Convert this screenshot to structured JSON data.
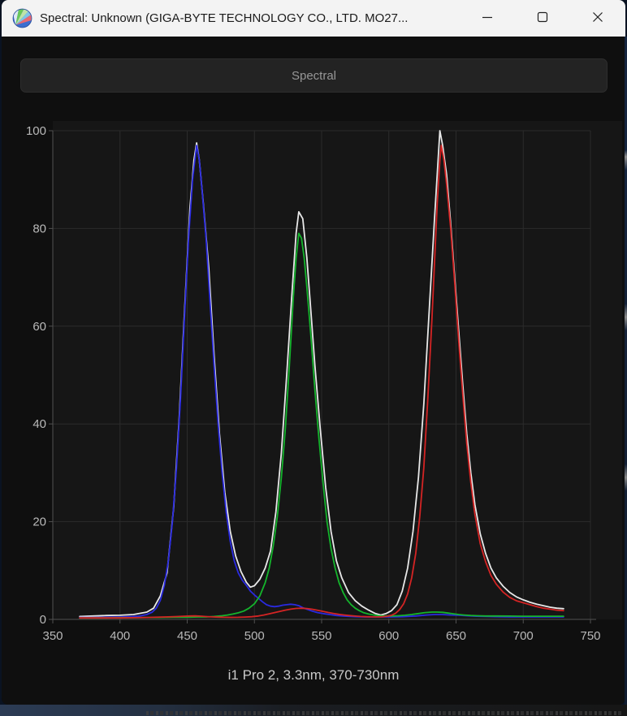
{
  "window": {
    "title": "Spectral: Unknown (GIGA-BYTE TECHNOLOGY CO., LTD. MO27...",
    "app_icon": "displaycal-logo",
    "controls": [
      {
        "name": "minimize"
      },
      {
        "name": "maximize"
      },
      {
        "name": "close"
      }
    ]
  },
  "toolbar": {
    "spectral_label": "Spectral"
  },
  "caption": {
    "text": "i1 Pro 2, 3.3nm, 370-730nm"
  },
  "colors": {
    "titlebar_bg": "#f3f3f3",
    "window_bg": "#0f0f0f",
    "plot_bg": "#161616",
    "button_bg": "#232323",
    "grid": "#2b2b2b",
    "axis": "#515151",
    "tick_text": "#b9b9b9"
  },
  "chart_data": {
    "type": "line",
    "title": "",
    "xlabel": "",
    "ylabel": "",
    "xlim": [
      350,
      750
    ],
    "ylim": [
      0,
      100
    ],
    "x_ticks": [
      350,
      400,
      450,
      500,
      550,
      600,
      650,
      700,
      750
    ],
    "y_ticks": [
      0,
      20,
      40,
      60,
      80,
      100
    ],
    "grid": true,
    "legend": "none",
    "x_unit": "nm",
    "series": [
      {
        "name": "white",
        "color": "#e8e8e8",
        "points": [
          [
            370,
            0.6
          ],
          [
            380,
            0.7
          ],
          [
            390,
            0.8
          ],
          [
            400,
            0.85
          ],
          [
            410,
            1.0
          ],
          [
            420,
            1.5
          ],
          [
            425,
            2.3
          ],
          [
            430,
            4.8
          ],
          [
            435,
            9.5
          ],
          [
            440,
            23
          ],
          [
            444,
            41
          ],
          [
            448,
            63
          ],
          [
            452,
            84
          ],
          [
            455,
            94
          ],
          [
            457,
            97.5
          ],
          [
            459,
            94
          ],
          [
            462,
            85
          ],
          [
            466,
            72
          ],
          [
            470,
            54
          ],
          [
            474,
            38
          ],
          [
            478,
            26
          ],
          [
            482,
            18
          ],
          [
            486,
            13
          ],
          [
            490,
            9.8
          ],
          [
            494,
            7.6
          ],
          [
            497,
            6.6
          ],
          [
            500,
            6.9
          ],
          [
            504,
            8.2
          ],
          [
            508,
            10.5
          ],
          [
            512,
            14
          ],
          [
            516,
            22
          ],
          [
            520,
            34
          ],
          [
            524,
            50
          ],
          [
            528,
            67
          ],
          [
            531,
            79
          ],
          [
            533,
            83.4
          ],
          [
            536,
            82
          ],
          [
            539,
            74
          ],
          [
            542,
            63
          ],
          [
            545,
            52
          ],
          [
            549,
            39
          ],
          [
            553,
            27
          ],
          [
            557,
            18
          ],
          [
            561,
            12
          ],
          [
            565,
            8.5
          ],
          [
            570,
            5.5
          ],
          [
            575,
            3.8
          ],
          [
            580,
            2.7
          ],
          [
            585,
            1.9
          ],
          [
            590,
            1.2
          ],
          [
            594,
            0.9
          ],
          [
            598,
            1.2
          ],
          [
            602,
            1.8
          ],
          [
            606,
            3.0
          ],
          [
            610,
            5.8
          ],
          [
            614,
            10.5
          ],
          [
            618,
            18
          ],
          [
            622,
            29
          ],
          [
            626,
            44
          ],
          [
            630,
            63
          ],
          [
            634,
            82
          ],
          [
            636,
            91
          ],
          [
            638,
            100
          ],
          [
            640,
            97
          ],
          [
            643,
            91
          ],
          [
            646,
            81
          ],
          [
            649,
            70
          ],
          [
            652,
            59
          ],
          [
            655,
            48
          ],
          [
            658,
            38
          ],
          [
            661,
            30
          ],
          [
            664,
            23.5
          ],
          [
            668,
            17.5
          ],
          [
            672,
            13.5
          ],
          [
            676,
            10.5
          ],
          [
            680,
            8.5
          ],
          [
            685,
            6.8
          ],
          [
            690,
            5.5
          ],
          [
            695,
            4.6
          ],
          [
            700,
            4.0
          ],
          [
            705,
            3.5
          ],
          [
            710,
            3.1
          ],
          [
            715,
            2.8
          ],
          [
            720,
            2.5
          ],
          [
            725,
            2.3
          ],
          [
            730,
            2.2
          ]
        ]
      },
      {
        "name": "blue",
        "color": "#2a2ae0",
        "points": [
          [
            370,
            0.4
          ],
          [
            380,
            0.4
          ],
          [
            390,
            0.45
          ],
          [
            400,
            0.5
          ],
          [
            410,
            0.6
          ],
          [
            415,
            0.7
          ],
          [
            420,
            1.0
          ],
          [
            424,
            1.5
          ],
          [
            427,
            2.3
          ],
          [
            430,
            3.9
          ],
          [
            433,
            7
          ],
          [
            436,
            12
          ],
          [
            439,
            20
          ],
          [
            442,
            31
          ],
          [
            445,
            45
          ],
          [
            448,
            62
          ],
          [
            451,
            78
          ],
          [
            454,
            90
          ],
          [
            457,
            97
          ],
          [
            459,
            94
          ],
          [
            461,
            88
          ],
          [
            464,
            78
          ],
          [
            467,
            65
          ],
          [
            470,
            52
          ],
          [
            473,
            40
          ],
          [
            476,
            30
          ],
          [
            479,
            22
          ],
          [
            482,
            16
          ],
          [
            485,
            12
          ],
          [
            488,
            9.5
          ],
          [
            491,
            8.0
          ],
          [
            494,
            7.0
          ],
          [
            497,
            5.8
          ],
          [
            500,
            5.0
          ],
          [
            503,
            4.3
          ],
          [
            506,
            3.6
          ],
          [
            509,
            3.0
          ],
          [
            512,
            2.7
          ],
          [
            515,
            2.6
          ],
          [
            518,
            2.7
          ],
          [
            521,
            2.9
          ],
          [
            524,
            3.0
          ],
          [
            527,
            3.1
          ],
          [
            530,
            3.0
          ],
          [
            533,
            2.8
          ],
          [
            536,
            2.4
          ],
          [
            539,
            2.1
          ],
          [
            543,
            1.7
          ],
          [
            547,
            1.4
          ],
          [
            551,
            1.2
          ],
          [
            556,
            1.0
          ],
          [
            561,
            0.8
          ],
          [
            566,
            0.7
          ],
          [
            571,
            0.6
          ],
          [
            576,
            0.55
          ],
          [
            582,
            0.5
          ],
          [
            590,
            0.5
          ],
          [
            600,
            0.5
          ],
          [
            610,
            0.55
          ],
          [
            620,
            0.7
          ],
          [
            628,
            0.9
          ],
          [
            634,
            1.0
          ],
          [
            640,
            1.0
          ],
          [
            646,
            0.9
          ],
          [
            652,
            0.85
          ],
          [
            658,
            0.75
          ],
          [
            665,
            0.65
          ],
          [
            672,
            0.6
          ],
          [
            680,
            0.55
          ],
          [
            690,
            0.5
          ],
          [
            700,
            0.5
          ],
          [
            710,
            0.5
          ],
          [
            720,
            0.5
          ],
          [
            730,
            0.5
          ]
        ]
      },
      {
        "name": "green",
        "color": "#14b42c",
        "points": [
          [
            370,
            0.3
          ],
          [
            380,
            0.3
          ],
          [
            390,
            0.3
          ],
          [
            400,
            0.35
          ],
          [
            410,
            0.35
          ],
          [
            420,
            0.4
          ],
          [
            430,
            0.4
          ],
          [
            440,
            0.45
          ],
          [
            450,
            0.45
          ],
          [
            458,
            0.5
          ],
          [
            464,
            0.5
          ],
          [
            470,
            0.6
          ],
          [
            476,
            0.75
          ],
          [
            480,
            0.9
          ],
          [
            484,
            1.1
          ],
          [
            488,
            1.35
          ],
          [
            492,
            1.7
          ],
          [
            496,
            2.3
          ],
          [
            500,
            3.2
          ],
          [
            504,
            4.8
          ],
          [
            508,
            7.5
          ],
          [
            511,
            10.5
          ],
          [
            514,
            15
          ],
          [
            517,
            21
          ],
          [
            520,
            29
          ],
          [
            523,
            39
          ],
          [
            526,
            52
          ],
          [
            529,
            66
          ],
          [
            531,
            74
          ],
          [
            533,
            79
          ],
          [
            535,
            78
          ],
          [
            537,
            74
          ],
          [
            539,
            68
          ],
          [
            542,
            58
          ],
          [
            545,
            47
          ],
          [
            548,
            37
          ],
          [
            551,
            28
          ],
          [
            554,
            20
          ],
          [
            557,
            14.5
          ],
          [
            560,
            10.5
          ],
          [
            563,
            7.5
          ],
          [
            566,
            5.5
          ],
          [
            569,
            4.0
          ],
          [
            572,
            3.0
          ],
          [
            575,
            2.3
          ],
          [
            578,
            1.8
          ],
          [
            581,
            1.4
          ],
          [
            585,
            1.1
          ],
          [
            589,
            0.9
          ],
          [
            593,
            0.75
          ],
          [
            597,
            0.7
          ],
          [
            602,
            0.7
          ],
          [
            607,
            0.75
          ],
          [
            612,
            0.85
          ],
          [
            617,
            1.0
          ],
          [
            622,
            1.2
          ],
          [
            627,
            1.4
          ],
          [
            632,
            1.5
          ],
          [
            636,
            1.5
          ],
          [
            640,
            1.45
          ],
          [
            644,
            1.3
          ],
          [
            648,
            1.15
          ],
          [
            652,
            1.0
          ],
          [
            656,
            0.9
          ],
          [
            661,
            0.8
          ],
          [
            666,
            0.75
          ],
          [
            672,
            0.7
          ],
          [
            680,
            0.7
          ],
          [
            690,
            0.68
          ],
          [
            700,
            0.65
          ],
          [
            710,
            0.65
          ],
          [
            720,
            0.65
          ],
          [
            730,
            0.65
          ]
        ]
      },
      {
        "name": "red",
        "color": "#d42424",
        "points": [
          [
            370,
            0.3
          ],
          [
            380,
            0.3
          ],
          [
            390,
            0.3
          ],
          [
            400,
            0.3
          ],
          [
            410,
            0.35
          ],
          [
            420,
            0.4
          ],
          [
            430,
            0.48
          ],
          [
            436,
            0.52
          ],
          [
            442,
            0.58
          ],
          [
            447,
            0.65
          ],
          [
            452,
            0.7
          ],
          [
            456,
            0.72
          ],
          [
            460,
            0.66
          ],
          [
            464,
            0.58
          ],
          [
            468,
            0.52
          ],
          [
            473,
            0.47
          ],
          [
            478,
            0.43
          ],
          [
            483,
            0.42
          ],
          [
            488,
            0.44
          ],
          [
            493,
            0.48
          ],
          [
            498,
            0.55
          ],
          [
            503,
            0.7
          ],
          [
            507,
            0.9
          ],
          [
            511,
            1.15
          ],
          [
            515,
            1.4
          ],
          [
            519,
            1.65
          ],
          [
            523,
            1.9
          ],
          [
            527,
            2.1
          ],
          [
            531,
            2.25
          ],
          [
            535,
            2.3
          ],
          [
            539,
            2.22
          ],
          [
            543,
            2.08
          ],
          [
            547,
            1.88
          ],
          [
            551,
            1.65
          ],
          [
            555,
            1.42
          ],
          [
            559,
            1.22
          ],
          [
            563,
            1.03
          ],
          [
            567,
            0.9
          ],
          [
            571,
            0.78
          ],
          [
            575,
            0.68
          ],
          [
            579,
            0.6
          ],
          [
            583,
            0.55
          ],
          [
            587,
            0.51
          ],
          [
            591,
            0.5
          ],
          [
            595,
            0.53
          ],
          [
            599,
            0.65
          ],
          [
            602,
            0.85
          ],
          [
            605,
            1.25
          ],
          [
            608,
            2.0
          ],
          [
            611,
            3.2
          ],
          [
            614,
            5.2
          ],
          [
            617,
            8.5
          ],
          [
            620,
            13.5
          ],
          [
            623,
            21
          ],
          [
            626,
            31
          ],
          [
            629,
            45
          ],
          [
            632,
            61
          ],
          [
            634,
            73
          ],
          [
            636,
            85
          ],
          [
            638,
            94
          ],
          [
            639,
            97
          ],
          [
            641,
            94
          ],
          [
            643,
            89
          ],
          [
            646,
            80
          ],
          [
            649,
            69
          ],
          [
            652,
            57
          ],
          [
            655,
            46
          ],
          [
            658,
            36
          ],
          [
            661,
            28
          ],
          [
            664,
            21.5
          ],
          [
            668,
            15.5
          ],
          [
            672,
            11.8
          ],
          [
            676,
            9.0
          ],
          [
            680,
            7.2
          ],
          [
            685,
            5.6
          ],
          [
            690,
            4.5
          ],
          [
            695,
            3.8
          ],
          [
            700,
            3.4
          ],
          [
            705,
            3.0
          ],
          [
            710,
            2.6
          ],
          [
            715,
            2.3
          ],
          [
            720,
            2.1
          ],
          [
            725,
            1.9
          ],
          [
            730,
            1.8
          ]
        ]
      }
    ]
  }
}
